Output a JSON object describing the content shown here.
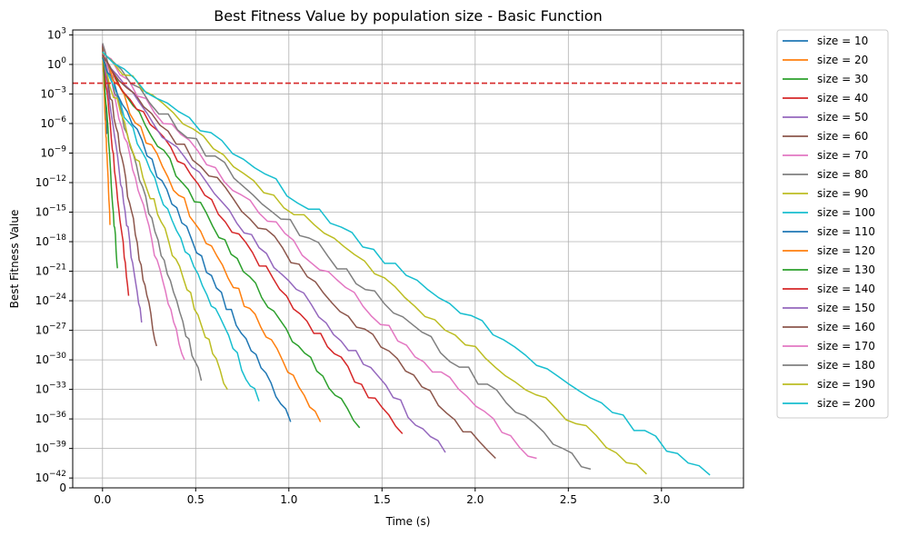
{
  "chart_data": {
    "type": "line",
    "title": "Best Fitness Value by population size - Basic Function",
    "xlabel": "Time (s)",
    "ylabel": "Best Fitness Value",
    "yscale": "symlog",
    "xlim": [
      -0.16,
      3.44
    ],
    "ylim_exponent": [
      -43.0,
      3.5
    ],
    "grid": true,
    "legend_position": "outside-right",
    "x_ticks": [
      {
        "value": 0.0,
        "label": "0.0"
      },
      {
        "value": 0.5,
        "label": "0.5"
      },
      {
        "value": 1.0,
        "label": "1.0"
      },
      {
        "value": 1.5,
        "label": "1.5"
      },
      {
        "value": 2.0,
        "label": "2.0"
      },
      {
        "value": 2.5,
        "label": "2.5"
      },
      {
        "value": 3.0,
        "label": "3.0"
      }
    ],
    "y_ticks": [
      {
        "exp": 3,
        "base": "10",
        "sup": "3"
      },
      {
        "exp": 0,
        "base": "10",
        "sup": "0"
      },
      {
        "exp": -3,
        "base": "10",
        "sup": "−3"
      },
      {
        "exp": -6,
        "base": "10",
        "sup": "−6"
      },
      {
        "exp": -9,
        "base": "10",
        "sup": "−9"
      },
      {
        "exp": -12,
        "base": "10",
        "sup": "−12"
      },
      {
        "exp": -15,
        "base": "10",
        "sup": "−15"
      },
      {
        "exp": -18,
        "base": "10",
        "sup": "−18"
      },
      {
        "exp": -21,
        "base": "10",
        "sup": "−21"
      },
      {
        "exp": -24,
        "base": "10",
        "sup": "−24"
      },
      {
        "exp": -27,
        "base": "10",
        "sup": "−27"
      },
      {
        "exp": -30,
        "base": "10",
        "sup": "−30"
      },
      {
        "exp": -33,
        "base": "10",
        "sup": "−33"
      },
      {
        "exp": -36,
        "base": "10",
        "sup": "−36"
      },
      {
        "exp": -39,
        "base": "10",
        "sup": "−39"
      },
      {
        "exp": -42,
        "base": "10",
        "sup": "−42"
      },
      {
        "exp": -43,
        "base": "0",
        "sup": ""
      }
    ],
    "threshold": {
      "y_exponent": -1.9,
      "color": "#d62728",
      "style": "dashed"
    },
    "series": [
      {
        "name": "size = 10",
        "color": "#1f77b4",
        "t_end": 0.025,
        "exp_end": -7
      },
      {
        "name": "size = 20",
        "color": "#ff7f0e",
        "t_end": 0.04,
        "exp_end": -16.3
      },
      {
        "name": "size = 30",
        "color": "#2ca02c",
        "t_end": 0.08,
        "exp_end": -20.7
      },
      {
        "name": "size = 40",
        "color": "#d62728",
        "t_end": 0.14,
        "exp_end": -23.5
      },
      {
        "name": "size = 50",
        "color": "#9467bd",
        "t_end": 0.21,
        "exp_end": -26.2
      },
      {
        "name": "size = 60",
        "color": "#8c564b",
        "t_end": 0.29,
        "exp_end": -28.6
      },
      {
        "name": "size = 70",
        "color": "#e377c2",
        "t_end": 0.44,
        "exp_end": -30.0
      },
      {
        "name": "size = 80",
        "color": "#7f7f7f",
        "t_end": 0.53,
        "exp_end": -32.1
      },
      {
        "name": "size = 90",
        "color": "#bcbd22",
        "t_end": 0.67,
        "exp_end": -33.0
      },
      {
        "name": "size = 100",
        "color": "#17becf",
        "t_end": 0.84,
        "exp_end": -34.2
      },
      {
        "name": "size = 110",
        "color": "#1f77b4",
        "t_end": 1.01,
        "exp_end": -36.3
      },
      {
        "name": "size = 120",
        "color": "#ff7f0e",
        "t_end": 1.17,
        "exp_end": -36.3
      },
      {
        "name": "size = 130",
        "color": "#2ca02c",
        "t_end": 1.38,
        "exp_end": -36.9
      },
      {
        "name": "size = 140",
        "color": "#d62728",
        "t_end": 1.61,
        "exp_end": -37.5
      },
      {
        "name": "size = 150",
        "color": "#9467bd",
        "t_end": 1.84,
        "exp_end": -39.4
      },
      {
        "name": "size = 160",
        "color": "#8c564b",
        "t_end": 2.11,
        "exp_end": -40.0
      },
      {
        "name": "size = 170",
        "color": "#e377c2",
        "t_end": 2.33,
        "exp_end": -40.0
      },
      {
        "name": "size = 180",
        "color": "#7f7f7f",
        "t_end": 2.62,
        "exp_end": -41.1
      },
      {
        "name": "size = 190",
        "color": "#bcbd22",
        "t_end": 2.92,
        "exp_end": -41.6
      },
      {
        "name": "size = 200",
        "color": "#17becf",
        "t_end": 3.26,
        "exp_end": -41.7
      }
    ]
  }
}
